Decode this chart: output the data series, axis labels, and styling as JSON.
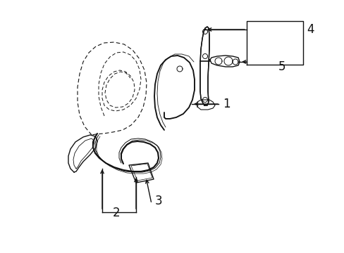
{
  "bg_color": "#ffffff",
  "line_color": "#111111",
  "figsize": [
    4.89,
    3.6
  ],
  "dpi": 100,
  "label_fontsize": 10,
  "label_fontsize_big": 12
}
